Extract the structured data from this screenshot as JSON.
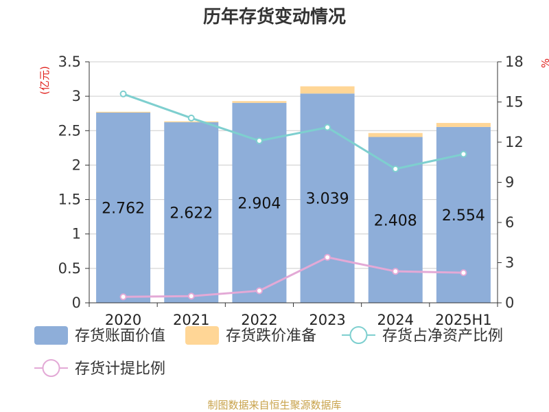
{
  "title": "历年存货变动情况",
  "source_note": "制图数据来自恒生聚源数据库",
  "left_unit": "(亿元)",
  "right_unit": "%",
  "colors": {
    "book_value": "#8eaed9",
    "impairment": "#ffd696",
    "net_asset_ratio": "#7ecfcf",
    "provision_ratio": "#e3a9d6"
  },
  "legend": [
    {
      "label": "存货账面价值",
      "kind": "rect",
      "color_key": "book_value"
    },
    {
      "label": "存货跌价准备",
      "kind": "rect",
      "color_key": "impairment"
    },
    {
      "label": "存货占净资产比例",
      "kind": "line",
      "color_key": "net_asset_ratio"
    },
    {
      "label": "存货计提比例",
      "kind": "line",
      "color_key": "provision_ratio"
    }
  ],
  "chart_data": {
    "type": "bar",
    "categories": [
      "2020",
      "2021",
      "2022",
      "2023",
      "2024",
      "2025H1"
    ],
    "y_left": {
      "min": 0,
      "max": 3.5,
      "ticks": [
        "0",
        "0.5",
        "1",
        "1.5",
        "2",
        "2.5",
        "3",
        "3.5"
      ],
      "tick_values": [
        0,
        0.5,
        1,
        1.5,
        2,
        2.5,
        3,
        3.5
      ]
    },
    "y_right": {
      "min": 0,
      "max": 18,
      "ticks": [
        "0",
        "3",
        "6",
        "9",
        "12",
        "15",
        "18"
      ],
      "tick_values": [
        0,
        3,
        6,
        9,
        12,
        15,
        18
      ]
    },
    "grid": true,
    "legend_position": "bottom",
    "series": [
      {
        "name": "存货账面价值",
        "type": "bar",
        "stack": "a",
        "axis": "left",
        "values": [
          2.762,
          2.622,
          2.904,
          3.039,
          2.408,
          2.554
        ],
        "labels": [
          "2.762",
          "2.622",
          "2.904",
          "3.039",
          "2.408",
          "2.554"
        ]
      },
      {
        "name": "存货跌价准备",
        "type": "bar",
        "stack": "a",
        "axis": "left",
        "values": [
          0.012,
          0.013,
          0.025,
          0.105,
          0.058,
          0.058
        ]
      },
      {
        "name": "存货占净资产比例",
        "type": "line",
        "axis": "right",
        "values": [
          15.6,
          13.8,
          12.1,
          13.1,
          10.0,
          11.1
        ]
      },
      {
        "name": "存货计提比例",
        "type": "line",
        "axis": "right",
        "values": [
          0.45,
          0.5,
          0.9,
          3.4,
          2.35,
          2.25
        ]
      }
    ]
  }
}
